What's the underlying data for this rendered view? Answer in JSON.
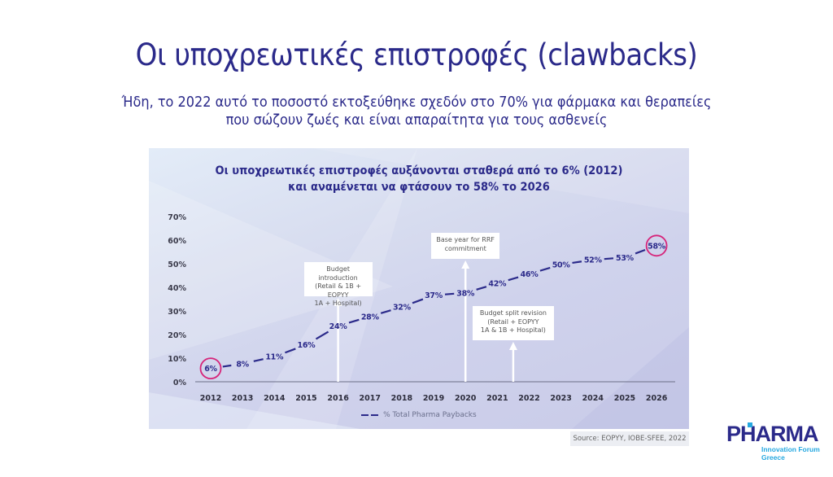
{
  "slide": {
    "title": "Οι υποχρεωτικές επιστροφές (clawbacks)",
    "subtitle_line1": "Ήδη, το 2022 αυτό το ποσοστό εκτοξεύθηκε σχεδόν στο 70% για φάρμακα και θεραπείες",
    "subtitle_line2": "που σώζουν ζωές και είναι απαραίτητα για τους ασθενείς",
    "source": "Source: EOPYY, IOBE-SFEE, 2022",
    "logo": {
      "main": "PHARMA",
      "line1": "Innovation Forum",
      "line2": "Greece",
      "colors": {
        "primary": "#2b2a8a",
        "accent": "#26a8e0"
      }
    }
  },
  "chart_data": {
    "type": "line",
    "title_line1": "Οι υποχρεωτικές επιστροφές αυξάνονται σταθερά από το 6% (2012)",
    "title_line2": "και αναμένεται να φτάσουν το 58% το 2026",
    "xlabel": "",
    "ylabel": "",
    "ylim": [
      0,
      70
    ],
    "yticks": [
      "0%",
      "10%",
      "20%",
      "30%",
      "40%",
      "50%",
      "60%",
      "70%"
    ],
    "categories": [
      "2012",
      "2013",
      "2014",
      "2015",
      "2016",
      "2017",
      "2018",
      "2019",
      "2020",
      "2021",
      "2022",
      "2023",
      "2024",
      "2025",
      "2026"
    ],
    "series": [
      {
        "name": "% Total Pharma Paybacks",
        "values": [
          6,
          8,
          11,
          16,
          24,
          28,
          32,
          37,
          38,
          42,
          46,
          50,
          52,
          53,
          58
        ],
        "labels": [
          "6%",
          "8%",
          "11%",
          "16%",
          "24%",
          "28%",
          "32%",
          "37%",
          "38%",
          "42%",
          "46%",
          "50%",
          "52%",
          "53%",
          "58%"
        ],
        "color": "#2b2a8a"
      }
    ],
    "highlighted": [
      "2012",
      "2026"
    ],
    "highlight_color": "#d6247a",
    "legend": {
      "position": "bottom",
      "label": "% Total Pharma Paybacks"
    },
    "grid": false,
    "annotations": [
      {
        "at": "2016",
        "text_lines": [
          "Budget introduction",
          "(Retail & 1B + EOPYY",
          "1A + Hospital)"
        ]
      },
      {
        "at": "2020",
        "text_lines": [
          "Base year for RRF",
          "commitment"
        ]
      },
      {
        "at": "2021.5",
        "text_lines": [
          "Budget split revision",
          "(Retail + EOPYY",
          "1A & 1B  + Hospital)"
        ]
      }
    ]
  }
}
